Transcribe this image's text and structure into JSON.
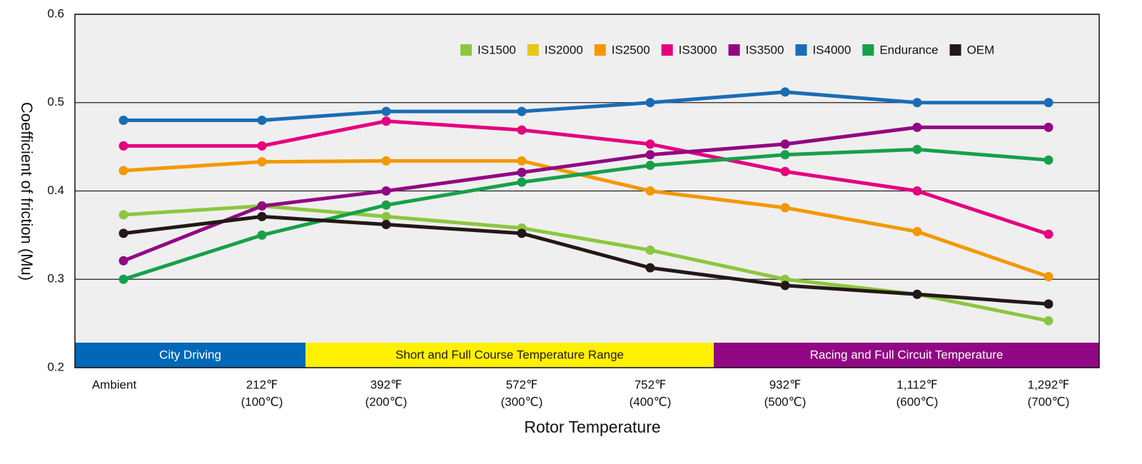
{
  "chart_data": {
    "type": "line",
    "x_label": "Rotor Temperature",
    "y_label": "Coefficient of friction (Mu)",
    "categories": [
      [
        "Ambient"
      ],
      [
        "212℉",
        "(100℃)"
      ],
      [
        "392℉",
        "(200℃)"
      ],
      [
        "572℉",
        "(300℃)"
      ],
      [
        "752℉",
        "(400℃)"
      ],
      [
        "932℉",
        "(500℃)"
      ],
      [
        "1,112℉",
        "(600℃)"
      ],
      [
        "1,292℉",
        "(700℃)"
      ]
    ],
    "ylim": [
      0.2,
      0.6
    ],
    "yticks": [
      0.2,
      0.3,
      0.4,
      0.5,
      0.6
    ],
    "grid": true,
    "legend": "top-right",
    "series": [
      {
        "name": "IS1500",
        "color": "#8cc63f",
        "values": [
          0.373,
          0.383,
          0.371,
          0.358,
          0.333,
          0.3,
          0.283,
          0.253
        ]
      },
      {
        "name": "IS2000",
        "color": "#e6c619",
        "values": [
          null,
          null,
          null,
          null,
          null,
          null,
          null,
          null
        ]
      },
      {
        "name": "IS2500",
        "color": "#f39800",
        "values": [
          0.423,
          0.433,
          0.434,
          0.434,
          0.4,
          0.381,
          0.354,
          0.303
        ]
      },
      {
        "name": "IS3000",
        "color": "#e4007f",
        "values": [
          0.451,
          0.451,
          0.479,
          0.469,
          0.453,
          0.422,
          0.4,
          0.351
        ]
      },
      {
        "name": "IS3500",
        "color": "#920783",
        "values": [
          0.321,
          0.383,
          0.4,
          0.421,
          0.441,
          0.453,
          0.472,
          0.472
        ]
      },
      {
        "name": "IS4000",
        "color": "#1a6cb5",
        "values": [
          0.48,
          0.48,
          0.49,
          0.49,
          0.5,
          0.512,
          0.5,
          0.5
        ]
      },
      {
        "name": "Endurance",
        "color": "#17a04a",
        "values": [
          0.3,
          0.35,
          0.384,
          0.41,
          0.429,
          0.441,
          0.447,
          0.435
        ]
      },
      {
        "name": "OEM",
        "color": "#231815",
        "values": [
          0.352,
          0.371,
          0.362,
          0.352,
          0.313,
          0.293,
          0.283,
          0.272
        ]
      }
    ],
    "bands": [
      {
        "label": "City Driving",
        "color": "#0068b7"
      },
      {
        "label": "Short and Full Course Temperature Range",
        "color": "#fff100",
        "text_color": "#231815"
      },
      {
        "label": "Racing and Full Circuit Temperature",
        "color": "#920783"
      }
    ]
  }
}
